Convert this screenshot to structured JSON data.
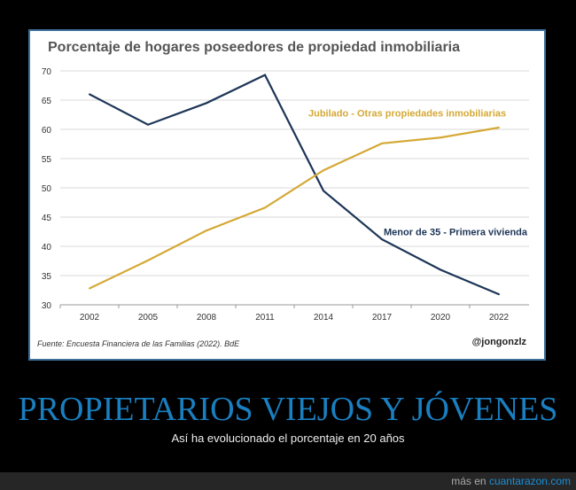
{
  "chart_data": {
    "type": "line",
    "title": "Porcentaje de hogares poseedores de propiedad inmobiliaria",
    "categories": [
      "2002",
      "2005",
      "2008",
      "2011",
      "2014",
      "2017",
      "2020",
      "2022"
    ],
    "ylim": [
      30,
      70
    ],
    "yticks": [
      30,
      35,
      40,
      45,
      50,
      55,
      60,
      65,
      70
    ],
    "grid": true,
    "series": [
      {
        "name": "Menor de 35 - Primera vivienda",
        "color": "#1d3557",
        "values": [
          66,
          60.8,
          64.5,
          69.3,
          49.5,
          41.2,
          36,
          31.8
        ]
      },
      {
        "name": "Jubilado - Otras propiedades inmobiliarias",
        "color": "#d4a936",
        "values": [
          32.8,
          37.6,
          42.7,
          46.6,
          53,
          57.6,
          58.6,
          60.3
        ]
      }
    ],
    "source": "Fuente: Encuesta Financiera de las Familias (2022). BdE",
    "credit": "@jongonzlz"
  },
  "caption": {
    "headline": "PROPIETARIOS VIEJOS Y JÓVENES",
    "subtitle": "Así ha evolucionado el porcentaje en 20 años"
  },
  "footer": {
    "prefix": "más en",
    "site": "cuantarazon.com"
  }
}
